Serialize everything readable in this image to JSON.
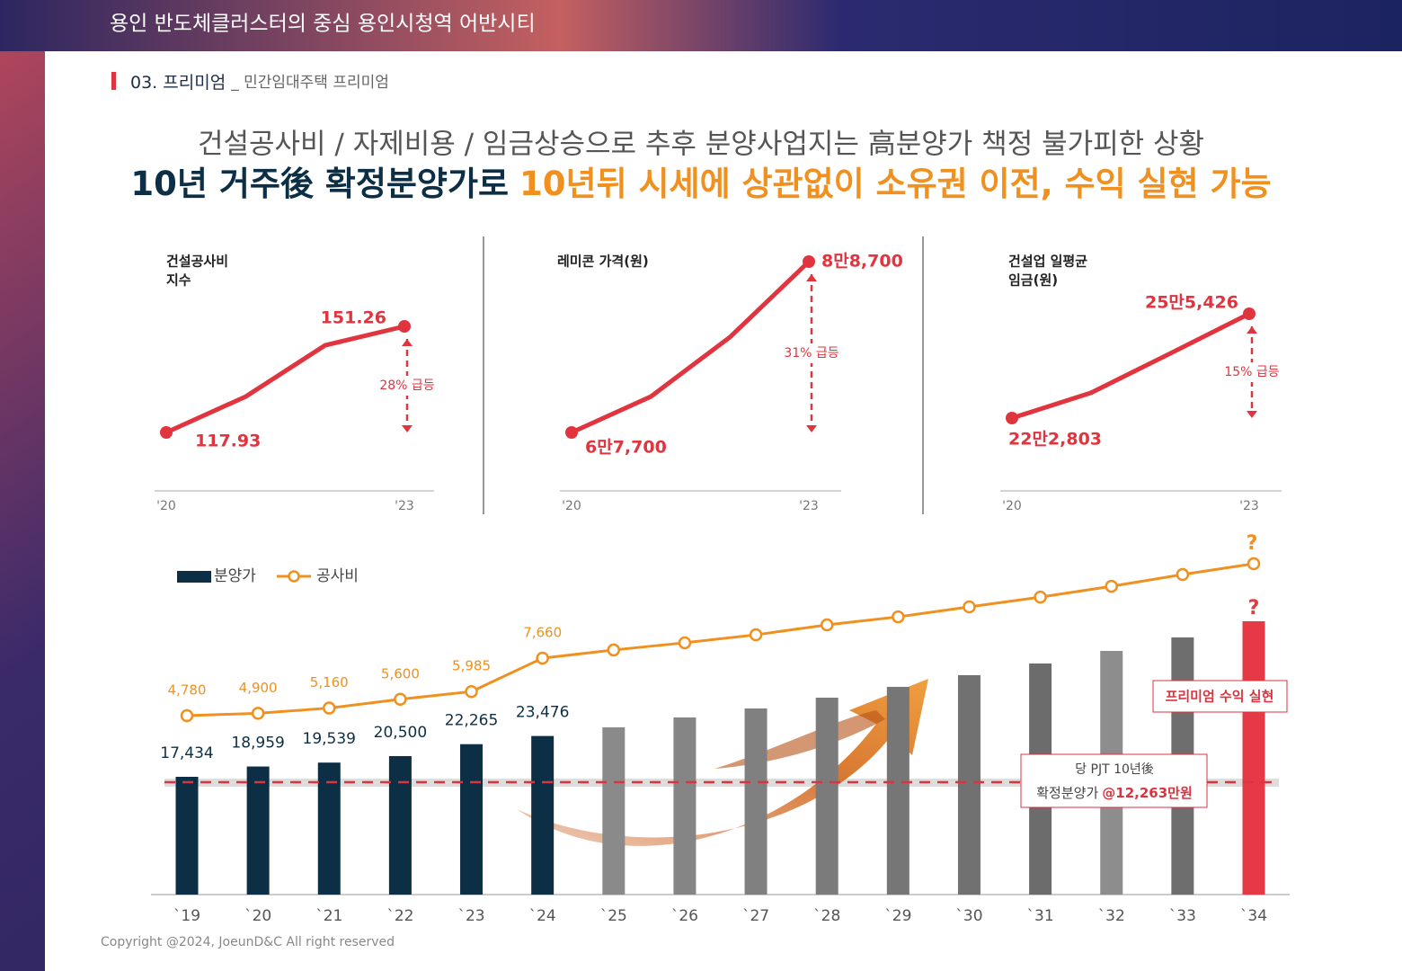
{
  "header": {
    "title": "용인 반도체클러스터의 중심 용인시청역 어반시티",
    "section": "03. 프리미엄",
    "subsection": "_ 민간임대주택 프리미엄"
  },
  "headline": {
    "line1": "건설공사비 / 자제비용 / 임금상승으로 추후 분양사업지는 高분양가 책정 불가피한 상황",
    "line2_a": "10년 거주後 확정분양가로",
    "line2_b": "10년뒤 시세에 상관없이 소유권 이전, 수익 실현 가능"
  },
  "chart_data": [
    {
      "type": "line",
      "title": [
        "건설공사비",
        "지수"
      ],
      "categories": [
        "'20",
        null,
        null,
        "'23"
      ],
      "values": [
        117.93,
        129.2,
        145.3,
        151.26
      ],
      "value_labels": [
        "117.93",
        null,
        null,
        "151.26"
      ],
      "annotation": "28% 급등",
      "color": "#e0343f"
    },
    {
      "type": "line",
      "title": [
        "레미콘 가격(원)"
      ],
      "categories": [
        "'20",
        null,
        null,
        "'23"
      ],
      "values": [
        67700,
        72100,
        79400,
        88700
      ],
      "value_labels": [
        "6만7,700",
        null,
        null,
        "8만8,700"
      ],
      "annotation": "31% 급등",
      "color": "#e0343f"
    },
    {
      "type": "line",
      "title": [
        "건설업 일평균",
        "임금(원)"
      ],
      "categories": [
        "'20",
        null,
        null,
        "'23"
      ],
      "values": [
        222803,
        230700,
        243000,
        255426
      ],
      "value_labels": [
        "22만2,803",
        null,
        null,
        "25만5,426"
      ],
      "annotation": "15% 급등",
      "color": "#e0343f"
    },
    {
      "type": "bar",
      "categories": [
        "`19",
        "`20",
        "`21",
        "`22",
        "`23",
        "`24",
        "`25",
        "`26",
        "`27",
        "`28",
        "`29",
        "`30",
        "`31",
        "`32",
        "`33",
        "`34"
      ],
      "series": [
        {
          "name": "분양가",
          "type": "bar",
          "color": "#0d2f45",
          "colors": [
            "#0d2f45",
            "#0d2f45",
            "#0d2f45",
            "#0d2f45",
            "#0d2f45",
            "#0d2f45",
            "#8a8a8a",
            "#858585",
            "#808080",
            "#7b7b7b",
            "#767676",
            "#717171",
            "#6c6c6c",
            "#8d8d8d",
            "#6e6e6e",
            "#e53946"
          ],
          "values": [
            17434,
            18959,
            19539,
            20500,
            22265,
            23476,
            24760,
            26220,
            27550,
            29150,
            30750,
            32480,
            34210,
            36070,
            38070,
            40460
          ],
          "value_labels": [
            "17,434",
            "18,959",
            "19,539",
            "20,500",
            "22,265",
            "23,476",
            null,
            null,
            null,
            null,
            null,
            null,
            null,
            null,
            null,
            "?"
          ]
        },
        {
          "name": "공사비",
          "type": "line",
          "color": "#f0901e",
          "values": [
            4780,
            4900,
            5160,
            5600,
            5985,
            7660,
            8070,
            8430,
            8830,
            9330,
            9730,
            10230,
            10720,
            11260,
            11850,
            12390
          ],
          "value_labels": [
            "4,780",
            "4,900",
            "5,160",
            "5,600",
            "5,985",
            "7,660",
            null,
            null,
            null,
            null,
            null,
            null,
            null,
            null,
            null,
            "?"
          ]
        }
      ],
      "premium_label": "프리미엄 수익 실현",
      "reference_label": {
        "line1": "당 PJT 10년後",
        "line2": "확정분양가",
        "highlight": "@12,263만원"
      }
    }
  ],
  "footer": "Copyright @2024, JoeunD&C All right reserved"
}
